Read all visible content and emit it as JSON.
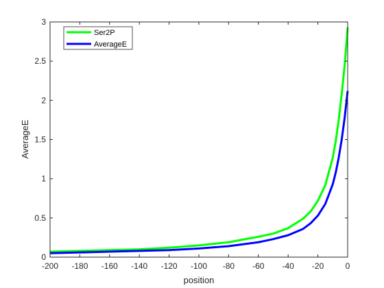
{
  "chart_data": {
    "type": "line",
    "xlabel": "position",
    "ylabel": "AverageE",
    "xlim": [
      -200,
      0
    ],
    "ylim": [
      0,
      3
    ],
    "xticks": [
      -200,
      -180,
      -160,
      -140,
      -120,
      -100,
      -80,
      -60,
      -40,
      -20,
      0
    ],
    "yticks": [
      0,
      0.5,
      1,
      1.5,
      2,
      2.5,
      3
    ],
    "ytick_labels": [
      "0",
      "0.5",
      "1",
      "1.5",
      "2",
      "2.5",
      "3"
    ],
    "grid": false,
    "legend_position": "top-left",
    "series": [
      {
        "name": "Ser2P",
        "color": "#00ff00",
        "x": [
          -200,
          -180,
          -160,
          -140,
          -120,
          -100,
          -80,
          -60,
          -50,
          -40,
          -30,
          -25,
          -20,
          -15,
          -10,
          -8,
          -6,
          -4,
          -2,
          0
        ],
        "y": [
          0.07,
          0.08,
          0.09,
          0.1,
          0.12,
          0.15,
          0.19,
          0.26,
          0.3,
          0.37,
          0.49,
          0.58,
          0.72,
          0.92,
          1.27,
          1.48,
          1.75,
          2.08,
          2.45,
          2.93
        ]
      },
      {
        "name": "AverageE",
        "color": "#0000ff",
        "x": [
          -200,
          -180,
          -160,
          -140,
          -120,
          -100,
          -80,
          -60,
          -50,
          -40,
          -30,
          -25,
          -20,
          -15,
          -10,
          -8,
          -6,
          -4,
          -2,
          0
        ],
        "y": [
          0.05,
          0.06,
          0.07,
          0.08,
          0.09,
          0.11,
          0.14,
          0.19,
          0.23,
          0.28,
          0.36,
          0.43,
          0.53,
          0.68,
          0.93,
          1.08,
          1.27,
          1.5,
          1.78,
          2.12
        ]
      }
    ]
  }
}
